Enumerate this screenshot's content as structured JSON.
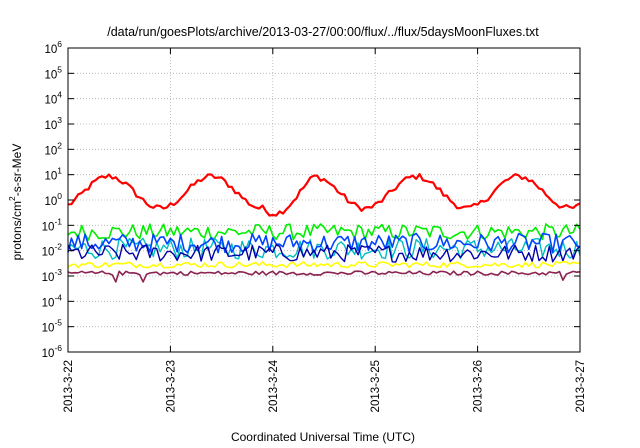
{
  "chart_data": {
    "type": "line",
    "title": "/data/run/goesPlots/archive/2013-03-27/00:00/flux/../flux/5daysMoonFluxes.txt",
    "xlabel": "Coordinated Universal Time (UTC)",
    "ylabel_parts": {
      "base": "protons/cm",
      "sup": "2",
      "rest": "-s-sr-MeV"
    },
    "y_scale": "log",
    "ylim": [
      1e-06,
      1000000.0
    ],
    "y_ticks": [
      {
        "value": 1e-06,
        "base": "10",
        "exp": "-6"
      },
      {
        "value": 1e-05,
        "base": "10",
        "exp": "-5"
      },
      {
        "value": 0.0001,
        "base": "10",
        "exp": "-4"
      },
      {
        "value": 0.001,
        "base": "10",
        "exp": "-3"
      },
      {
        "value": 0.01,
        "base": "10",
        "exp": "-2"
      },
      {
        "value": 0.1,
        "base": "10",
        "exp": "-1"
      },
      {
        "value": 1.0,
        "base": "10",
        "exp": "0"
      },
      {
        "value": 10.0,
        "base": "10",
        "exp": "1"
      },
      {
        "value": 100.0,
        "base": "10",
        "exp": "2"
      },
      {
        "value": 1000.0,
        "base": "10",
        "exp": "3"
      },
      {
        "value": 10000.0,
        "base": "10",
        "exp": "4"
      },
      {
        "value": 100000.0,
        "base": "10",
        "exp": "5"
      },
      {
        "value": 1000000.0,
        "base": "10",
        "exp": "6"
      }
    ],
    "x_ticks": [
      "2013-3-22",
      "2013-3-23",
      "2013-3-24",
      "2013-3-25",
      "2013-3-26",
      "2013-3-27"
    ],
    "grid": true,
    "legend": "none",
    "series": [
      {
        "color": "#ff0000",
        "level": 2.0,
        "wave": 1.05,
        "noise": 0.12,
        "variant": "wave",
        "width": 2.2
      },
      {
        "color": "#00ee00",
        "level": 0.055,
        "noise": 0.32,
        "variant": "noise",
        "width": 1.6
      },
      {
        "color": "#00bfbf",
        "level": 0.012,
        "noise": 0.42,
        "variant": "noise",
        "width": 1.4
      },
      {
        "color": "#0044ff",
        "level": 0.02,
        "noise": 0.38,
        "variant": "noise",
        "width": 1.6
      },
      {
        "color": "#0000aa",
        "level": 0.008,
        "noise": 0.35,
        "variant": "noise",
        "width": 1.4
      },
      {
        "color": "#ffff00",
        "level": 0.0028,
        "noise": 0.12,
        "variant": "noise",
        "width": 1.6
      },
      {
        "color": "#8b2252",
        "level": 0.0013,
        "noise": 0.08,
        "variant": "spiky",
        "width": 1.6
      }
    ]
  }
}
